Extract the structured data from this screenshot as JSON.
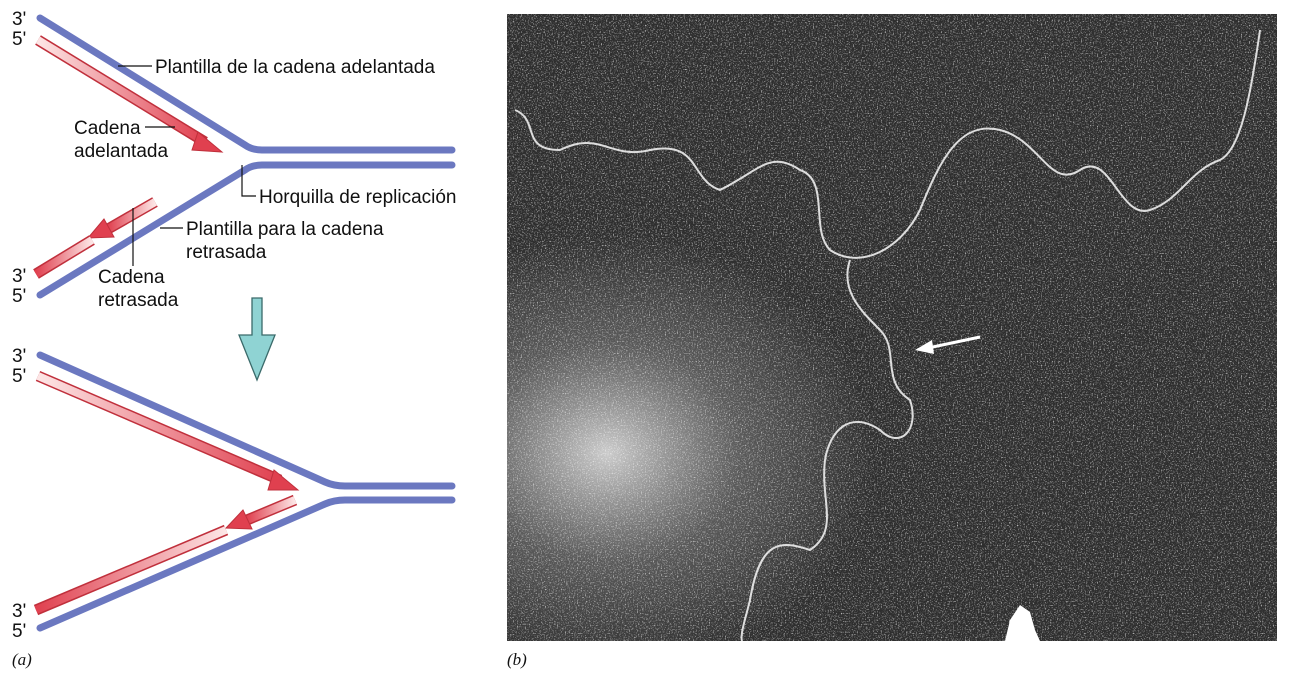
{
  "panel_a": {
    "top": {
      "strand_labels": [
        "3'",
        "5'",
        "3'",
        "5'"
      ],
      "leading_template": "Plantilla de la cadena adelantada",
      "leading_strand": [
        "Cadena",
        "adelantada"
      ],
      "fork": "Horquilla de replicación",
      "lagging_template": [
        "Plantilla para la cadena",
        "retrasada"
      ],
      "lagging_strand": [
        "Cadena",
        "retrasada"
      ]
    },
    "bottom": {
      "strand_labels": [
        "3'",
        "5'",
        "3'",
        "5'"
      ]
    },
    "caption": "(a)"
  },
  "panel_b": {
    "caption": "(b)"
  }
}
